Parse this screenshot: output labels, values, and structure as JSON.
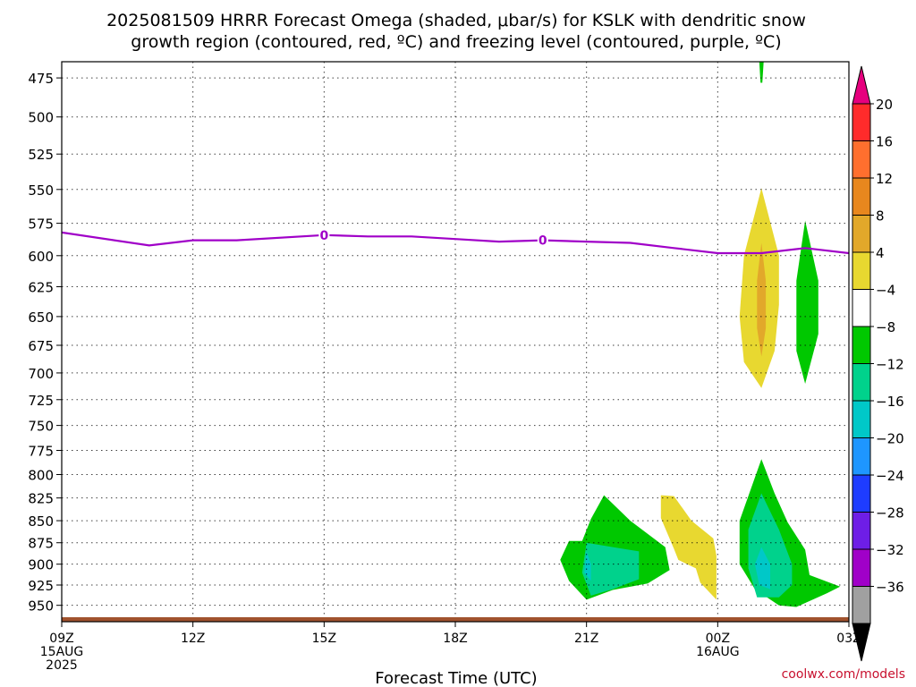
{
  "chart_data": {
    "type": "heatmap",
    "title_line1": "2025081509 HRRR Forecast Omega (shaded, μbar/s) for KSLK with dendritic snow",
    "title_line2": "growth region (contoured, red, ºC) and freezing level (contoured, purple, ºC)",
    "xlabel": "Forecast Time (UTC)",
    "x_ticks": [
      {
        "hour": 0,
        "lines": [
          "09Z",
          "15AUG",
          "2025"
        ]
      },
      {
        "hour": 3,
        "lines": [
          "12Z"
        ]
      },
      {
        "hour": 6,
        "lines": [
          "15Z"
        ]
      },
      {
        "hour": 9,
        "lines": [
          "18Z"
        ]
      },
      {
        "hour": 12,
        "lines": [
          "21Z"
        ]
      },
      {
        "hour": 15,
        "lines": [
          "00Z",
          "16AUG"
        ]
      },
      {
        "hour": 18,
        "lines": [
          "03Z"
        ]
      }
    ],
    "xlim_hours": [
      0,
      18
    ],
    "y_scale": "log",
    "ylim_mb": [
      965,
      465
    ],
    "y_ticks": [
      475,
      500,
      525,
      550,
      575,
      600,
      625,
      650,
      675,
      700,
      725,
      750,
      775,
      800,
      825,
      850,
      875,
      900,
      925,
      950
    ],
    "grid": true,
    "colorbar": {
      "labels": [
        "20",
        "16",
        "12",
        "8",
        "4",
        "−4",
        "−8",
        "−12",
        "−16",
        "−20",
        "−24",
        "−28",
        "−32",
        "−36"
      ],
      "colors": [
        "#e6007e",
        "#ff2b2b",
        "#ff6f2e",
        "#e8871e",
        "#e2a82a",
        "#e8d830",
        "#ffffff",
        "#00c800",
        "#00d28c",
        "#00c8c8",
        "#1e96ff",
        "#1e3cff",
        "#6e1ee6",
        "#a000c8",
        "#a0a0a0",
        "#000000"
      ]
    },
    "freezing_level": {
      "label": "0",
      "color": "#a000c8",
      "label_hours": [
        6,
        11
      ],
      "points": [
        [
          0,
          582
        ],
        [
          2,
          592
        ],
        [
          3,
          588
        ],
        [
          4,
          588
        ],
        [
          6,
          584
        ],
        [
          7,
          585
        ],
        [
          8,
          585
        ],
        [
          9,
          587
        ],
        [
          10,
          589
        ],
        [
          11,
          588
        ],
        [
          12,
          589
        ],
        [
          13,
          590
        ],
        [
          14,
          594
        ],
        [
          15,
          598
        ],
        [
          16,
          598
        ],
        [
          17,
          594
        ],
        [
          18,
          598
        ]
      ]
    },
    "omega_regions": [
      {
        "name": "up-12Z-21Z-low-green",
        "color": "#00c800",
        "points": [
          [
            11.9,
            873
          ],
          [
            12.1,
            848
          ],
          [
            12.4,
            822
          ],
          [
            13,
            850
          ],
          [
            13.8,
            880
          ],
          [
            13.9,
            907
          ],
          [
            13.4,
            923
          ],
          [
            12.6,
            931
          ],
          [
            12,
            943
          ],
          [
            11.6,
            920
          ],
          [
            11.4,
            895
          ],
          [
            11.6,
            873
          ]
        ]
      },
      {
        "name": "up-21Z-low-teal",
        "color": "#00d28c",
        "points": [
          [
            12,
            875
          ],
          [
            12.6,
            880
          ],
          [
            13.2,
            885
          ],
          [
            13.2,
            918
          ],
          [
            12.6,
            930
          ],
          [
            12.1,
            938
          ],
          [
            11.9,
            910
          ]
        ]
      },
      {
        "name": "up-21Z-low-cyan",
        "color": "#00c8c8",
        "points": [
          [
            12,
            885
          ],
          [
            12.1,
            900
          ],
          [
            12.1,
            920
          ],
          [
            11.95,
            910
          ]
        ]
      },
      {
        "name": "down-23Z-low-yellow",
        "color": "#e8d830",
        "points": [
          [
            13.7,
            822
          ],
          [
            14,
            823
          ],
          [
            14.4,
            850
          ],
          [
            14.9,
            870
          ],
          [
            14.97,
            890
          ],
          [
            14.97,
            943
          ],
          [
            14.6,
            922
          ],
          [
            14.5,
            905
          ],
          [
            14.1,
            895
          ],
          [
            14,
            882
          ],
          [
            13.7,
            847
          ]
        ]
      },
      {
        "name": "up-01Z-low-green",
        "color": "#00c800",
        "points": [
          [
            16,
            784
          ],
          [
            16.3,
            820
          ],
          [
            16.6,
            852
          ],
          [
            17,
            883
          ],
          [
            17.1,
            913
          ],
          [
            17.8,
            927
          ],
          [
            17.5,
            935
          ],
          [
            16.8,
            952
          ],
          [
            16.4,
            950
          ],
          [
            15.85,
            930
          ],
          [
            15.5,
            900
          ],
          [
            15.5,
            850
          ]
        ]
      },
      {
        "name": "up-01Z-low-teal",
        "color": "#00d28c",
        "points": [
          [
            16,
            820
          ],
          [
            16.4,
            860
          ],
          [
            16.7,
            900
          ],
          [
            16.7,
            925
          ],
          [
            16.4,
            940
          ],
          [
            15.9,
            940
          ],
          [
            15.7,
            905
          ],
          [
            15.7,
            860
          ]
        ]
      },
      {
        "name": "up-01Z-low-cyan",
        "color": "#00c8c8",
        "points": [
          [
            16,
            880
          ],
          [
            16.2,
            900
          ],
          [
            16.2,
            930
          ],
          [
            15.95,
            925
          ],
          [
            15.85,
            900
          ]
        ]
      },
      {
        "name": "down-01Z-mid-yellow",
        "color": "#e8d830",
        "points": [
          [
            16,
            549
          ],
          [
            16.4,
            600
          ],
          [
            16.4,
            640
          ],
          [
            16.3,
            680
          ],
          [
            16,
            714
          ],
          [
            15.6,
            690
          ],
          [
            15.5,
            650
          ],
          [
            15.6,
            600
          ]
        ]
      },
      {
        "name": "down-01Z-mid-orange",
        "color": "#e2a82a",
        "points": [
          [
            16,
            590
          ],
          [
            16.1,
            620
          ],
          [
            16.1,
            660
          ],
          [
            16,
            685
          ],
          [
            15.9,
            660
          ],
          [
            15.9,
            620
          ]
        ]
      },
      {
        "name": "up-02Z-mid-green",
        "color": "#00c800",
        "points": [
          [
            17,
            573
          ],
          [
            17.3,
            620
          ],
          [
            17.3,
            665
          ],
          [
            17,
            710
          ],
          [
            16.8,
            680
          ],
          [
            16.8,
            620
          ]
        ]
      },
      {
        "name": "up-top-sliver-green",
        "color": "#00c800",
        "points": [
          [
            15.95,
            465
          ],
          [
            16.05,
            465
          ],
          [
            16.02,
            478
          ],
          [
            15.98,
            478
          ]
        ]
      }
    ]
  },
  "credit": "coolwx.com/models"
}
